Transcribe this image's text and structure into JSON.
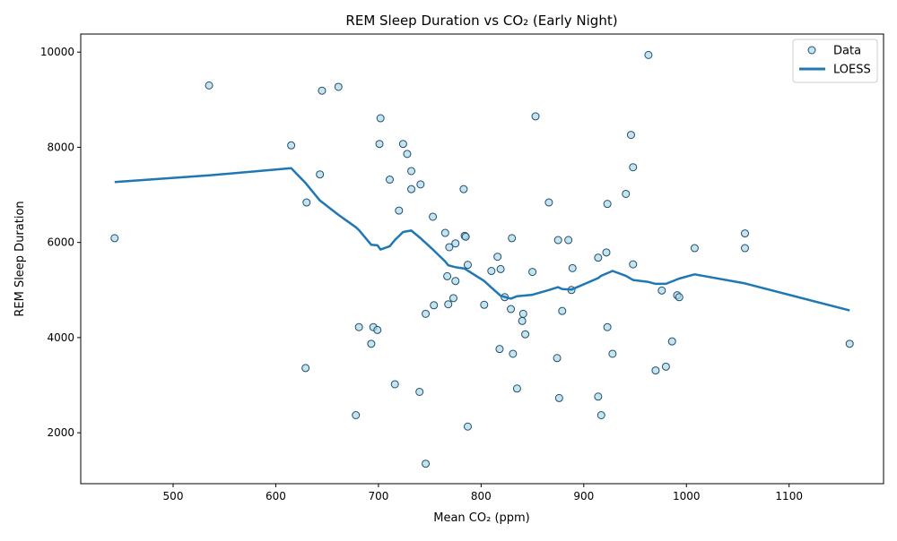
{
  "chart_data": {
    "type": "scatter",
    "title": "REM Sleep Duration vs CO₂ (Early Night)",
    "xlabel": "Mean CO₂ (ppm)",
    "ylabel": "REM Sleep Duration",
    "xlim": [
      410,
      1192
    ],
    "ylim": [
      930,
      10380
    ],
    "x_ticks": [
      500,
      600,
      700,
      800,
      900,
      1000,
      1100
    ],
    "y_ticks": [
      2000,
      4000,
      6000,
      8000,
      10000
    ],
    "grid": false,
    "legend": {
      "placement": "top-right",
      "entries": [
        "Data",
        "LOESS"
      ]
    },
    "colors": {
      "point_fill": "#add8e6",
      "point_edge": "#1f4e6e",
      "loess": "#1f77b4"
    },
    "series": [
      {
        "name": "Data",
        "kind": "scatter",
        "points": [
          [
            443,
            6090
          ],
          [
            535,
            9300
          ],
          [
            615,
            8040
          ],
          [
            629,
            3360
          ],
          [
            630,
            6840
          ],
          [
            643,
            7430
          ],
          [
            645,
            9190
          ],
          [
            661,
            9270
          ],
          [
            678,
            2370
          ],
          [
            681,
            4220
          ],
          [
            693,
            3870
          ],
          [
            695,
            4220
          ],
          [
            699,
            4160
          ],
          [
            701,
            8070
          ],
          [
            702,
            8610
          ],
          [
            711,
            7320
          ],
          [
            716,
            3020
          ],
          [
            720,
            6670
          ],
          [
            724,
            8070
          ],
          [
            728,
            7860
          ],
          [
            732,
            7500
          ],
          [
            732,
            7120
          ],
          [
            740,
            2860
          ],
          [
            741,
            7220
          ],
          [
            746,
            1350
          ],
          [
            746,
            4500
          ],
          [
            753,
            6540
          ],
          [
            754,
            4680
          ],
          [
            765,
            6200
          ],
          [
            767,
            5290
          ],
          [
            768,
            4700
          ],
          [
            769,
            5900
          ],
          [
            773,
            4830
          ],
          [
            775,
            5980
          ],
          [
            775,
            5190
          ],
          [
            783,
            7120
          ],
          [
            784,
            6140
          ],
          [
            785,
            6120
          ],
          [
            787,
            5530
          ],
          [
            787,
            2130
          ],
          [
            803,
            4690
          ],
          [
            810,
            5400
          ],
          [
            816,
            5700
          ],
          [
            818,
            3760
          ],
          [
            819,
            5440
          ],
          [
            823,
            4850
          ],
          [
            829,
            4600
          ],
          [
            830,
            6090
          ],
          [
            831,
            3660
          ],
          [
            835,
            2930
          ],
          [
            840,
            4350
          ],
          [
            841,
            4500
          ],
          [
            843,
            4070
          ],
          [
            850,
            5380
          ],
          [
            853,
            8650
          ],
          [
            866,
            6840
          ],
          [
            874,
            3570
          ],
          [
            875,
            6050
          ],
          [
            876,
            2730
          ],
          [
            879,
            4560
          ],
          [
            885,
            6050
          ],
          [
            888,
            5000
          ],
          [
            889,
            5460
          ],
          [
            914,
            2760
          ],
          [
            914,
            5680
          ],
          [
            917,
            2370
          ],
          [
            922,
            5790
          ],
          [
            923,
            6810
          ],
          [
            923,
            4220
          ],
          [
            928,
            3660
          ],
          [
            941,
            7020
          ],
          [
            946,
            8260
          ],
          [
            948,
            7580
          ],
          [
            948,
            5540
          ],
          [
            963,
            9940
          ],
          [
            970,
            3310
          ],
          [
            976,
            4990
          ],
          [
            980,
            3390
          ],
          [
            986,
            3920
          ],
          [
            991,
            4890
          ],
          [
            993,
            4850
          ],
          [
            1008,
            5880
          ],
          [
            1057,
            5880
          ],
          [
            1057,
            6190
          ],
          [
            1159,
            3870
          ]
        ]
      },
      {
        "name": "LOESS",
        "kind": "line",
        "points": [
          [
            443,
            7270
          ],
          [
            535,
            7410
          ],
          [
            615,
            7560
          ],
          [
            629,
            7250
          ],
          [
            643,
            6880
          ],
          [
            661,
            6580
          ],
          [
            678,
            6320
          ],
          [
            681,
            6260
          ],
          [
            693,
            5950
          ],
          [
            699,
            5940
          ],
          [
            702,
            5850
          ],
          [
            711,
            5920
          ],
          [
            716,
            6050
          ],
          [
            724,
            6220
          ],
          [
            732,
            6250
          ],
          [
            741,
            6090
          ],
          [
            753,
            5850
          ],
          [
            765,
            5600
          ],
          [
            768,
            5520
          ],
          [
            775,
            5480
          ],
          [
            784,
            5450
          ],
          [
            803,
            5190
          ],
          [
            810,
            5050
          ],
          [
            819,
            4880
          ],
          [
            829,
            4820
          ],
          [
            835,
            4870
          ],
          [
            850,
            4900
          ],
          [
            866,
            5000
          ],
          [
            875,
            5060
          ],
          [
            879,
            5020
          ],
          [
            888,
            5010
          ],
          [
            914,
            5250
          ],
          [
            917,
            5300
          ],
          [
            928,
            5400
          ],
          [
            941,
            5300
          ],
          [
            948,
            5210
          ],
          [
            963,
            5170
          ],
          [
            970,
            5130
          ],
          [
            980,
            5130
          ],
          [
            993,
            5240
          ],
          [
            1008,
            5330
          ],
          [
            1057,
            5140
          ],
          [
            1159,
            4570
          ]
        ]
      }
    ]
  }
}
